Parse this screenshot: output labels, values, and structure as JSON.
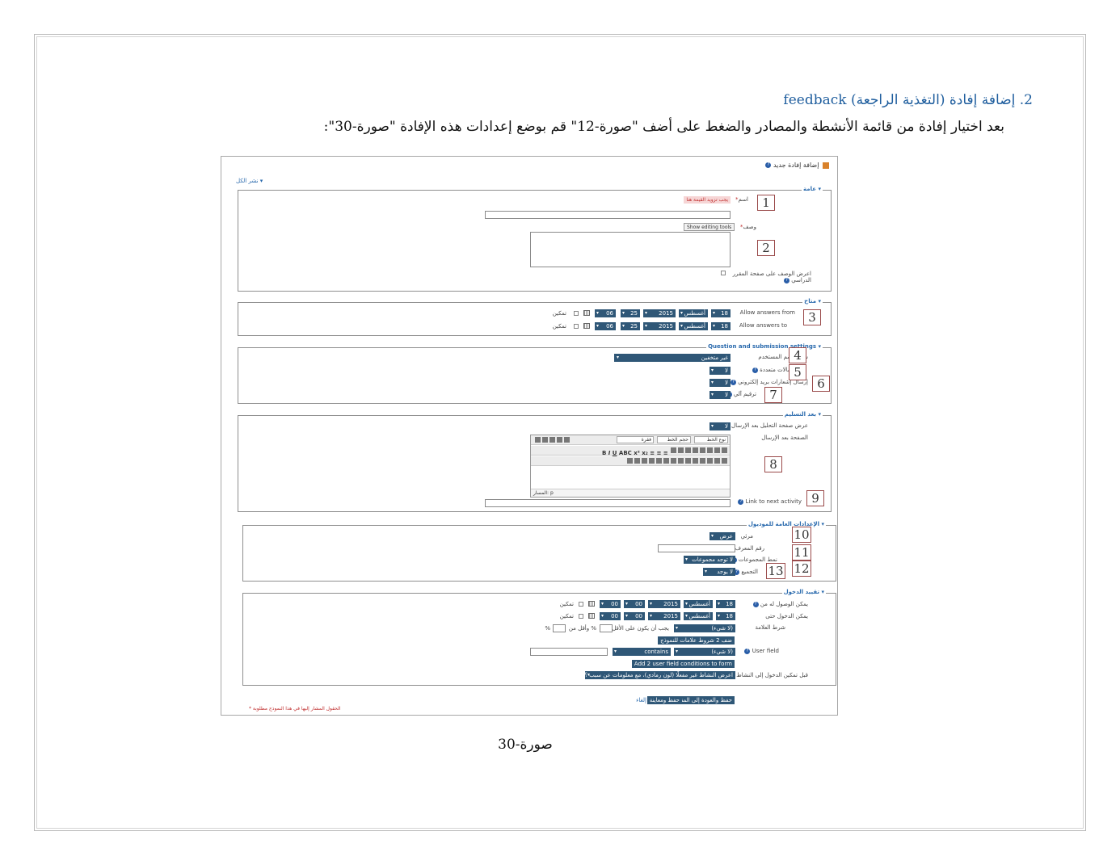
{
  "document": {
    "heading": "2.  إضافة إفادة (التغذية الراجعة) feedback",
    "intro": "بعد اختيار إفادة من قائمة الأنشطة والمصادر والضغط على أضف \"صورة-12\" قم بوضع إعدادات هذه الإفادة \"صورة-30\":",
    "caption": "صورة-30"
  },
  "form": {
    "title": "إضافة إفادة جديد",
    "expand_all": "نشر الكل",
    "general": {
      "legend": "عامة",
      "name_label": "اسم",
      "required_error": "يجب تزويد القيمة هنا",
      "description_label": "وصف",
      "show_editing_tools": "Show editing tools",
      "show_desc_label_1": "اعرض الوصف على صفحة المقرر",
      "show_desc_label_2": "الدراسي"
    },
    "availability": {
      "legend": "متاح",
      "from_label": "Allow answers from",
      "to_label": "Allow answers to",
      "from": {
        "day": "18",
        "month": "أغسطس",
        "year": "2015",
        "d2": "25",
        "hour": "06",
        "enable": "تمكين"
      },
      "to": {
        "day": "18",
        "month": "أغسطس",
        "year": "2015",
        "d2": "25",
        "hour": "06",
        "enable": "تمكين"
      }
    },
    "question": {
      "legend": "Question and submission settings",
      "record_names_label": "سجل اسم المستخدم",
      "record_names_value": "غير متخفين",
      "multiple_label": "إرسالات متعددة",
      "email_label": "إرسال إشعارات بريد إلكتروني",
      "autonumber_label": "ترقيم آلي",
      "no": "لا"
    },
    "after": {
      "legend": "بعد التسليم",
      "analysis_label": "عرض صفحة التحليل بعد الإرسال",
      "no": "لا",
      "page_after_label": "الصفحة بعد الإرسال",
      "font_family": "نوع الخط",
      "font_size": "حجم الخط",
      "paragraph": "فقرة",
      "path": "المسار: p",
      "link_label": "Link to next activity"
    },
    "common": {
      "legend": "الإعدادات العامة للموديول",
      "visible_label": "مرئي",
      "visible_value": "عرض",
      "idnumber_label": "رقم المعرف",
      "groupmode_label": "نمط المجموعات",
      "groupmode_value": "لا توجد مجموعات",
      "grouping_label": "التجميع",
      "grouping_value": "لا يوجد"
    },
    "restrict": {
      "legend": "تقييد الدخول",
      "from_label": "يمكن الوصول له من",
      "until_label": "يمكن الدخول حتى",
      "grade_label": "شرط العلامة",
      "date": {
        "day": "18",
        "month": "أغسطس",
        "year": "2015",
        "hour": "00",
        "minute": "00",
        "enable": "تمكين"
      },
      "none": "(لا شيء)",
      "must_be_at_least": "يجب أن يكون على الأقل",
      "and_less_than": "% وأقل من",
      "percent": "%",
      "add_grade_conditions": "ضف 2 شروط علامات للنموذج",
      "user_field_label": "User field",
      "contains": "contains",
      "add_user_field": "Add 2 user field conditions to form",
      "before_access_label": "قبل تمكين الدخول إلى النشاط",
      "before_access_value": "اعرض النشاط غير مفعلًا (لون رمادي)، مع معلومات عن سبب ؟"
    },
    "buttons": {
      "save_return": "حفظ والعودة إلى المقرر",
      "save_display": "حفظ ومعاينة",
      "cancel": "إلغاء"
    },
    "required_note": "الحقول المشار إليها في هذا النموذج مطلوبة *"
  },
  "callouts": [
    "1",
    "2",
    "3",
    "4",
    "5",
    "6",
    "7",
    "8",
    "9",
    "10",
    "11",
    "12",
    "13"
  ],
  "icons": {
    "help": "help-icon",
    "calendar": "calendar-icon",
    "feedback": "feedback-icon"
  }
}
